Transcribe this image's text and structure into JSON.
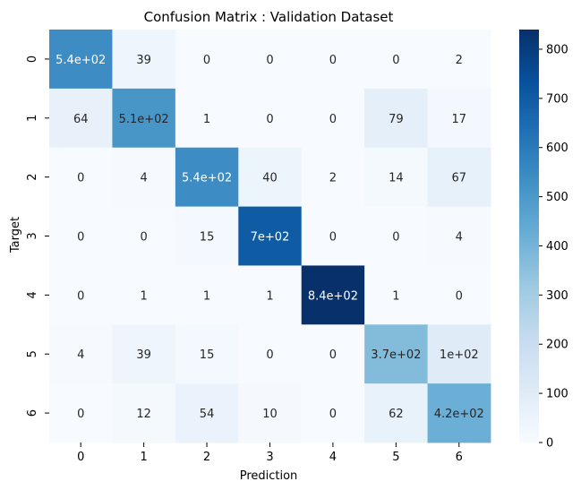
{
  "chart_data": {
    "type": "heatmap",
    "title": "Confusion Matrix : Validation Dataset",
    "xlabel": "Prediction",
    "ylabel": "Target",
    "x_categories": [
      "0",
      "1",
      "2",
      "3",
      "4",
      "5",
      "6"
    ],
    "y_categories": [
      "0",
      "1",
      "2",
      "3",
      "4",
      "5",
      "6"
    ],
    "values": [
      [
        540,
        39,
        0,
        0,
        0,
        0,
        2
      ],
      [
        64,
        510,
        1,
        0,
        0,
        79,
        17
      ],
      [
        0,
        4,
        540,
        40,
        2,
        14,
        67
      ],
      [
        0,
        0,
        15,
        700,
        0,
        0,
        4
      ],
      [
        0,
        1,
        1,
        1,
        840,
        1,
        0
      ],
      [
        4,
        39,
        15,
        0,
        0,
        370,
        100
      ],
      [
        0,
        12,
        54,
        10,
        0,
        62,
        420
      ]
    ],
    "annotations": [
      [
        "5.4e+02",
        "39",
        "0",
        "0",
        "0",
        "0",
        "2"
      ],
      [
        "64",
        "5.1e+02",
        "1",
        "0",
        "0",
        "79",
        "17"
      ],
      [
        "0",
        "4",
        "5.4e+02",
        "40",
        "2",
        "14",
        "67"
      ],
      [
        "0",
        "0",
        "15",
        "7e+02",
        "0",
        "0",
        "4"
      ],
      [
        "0",
        "1",
        "1",
        "1",
        "8.4e+02",
        "1",
        "0"
      ],
      [
        "4",
        "39",
        "15",
        "0",
        "0",
        "3.7e+02",
        "1e+02"
      ],
      [
        "0",
        "12",
        "54",
        "10",
        "0",
        "62",
        "4.2e+02"
      ]
    ],
    "colorbar": {
      "vmin": 0,
      "vmax": 840,
      "ticks": [
        0,
        100,
        200,
        300,
        400,
        500,
        600,
        700,
        800
      ],
      "colormap": "Blues"
    }
  }
}
